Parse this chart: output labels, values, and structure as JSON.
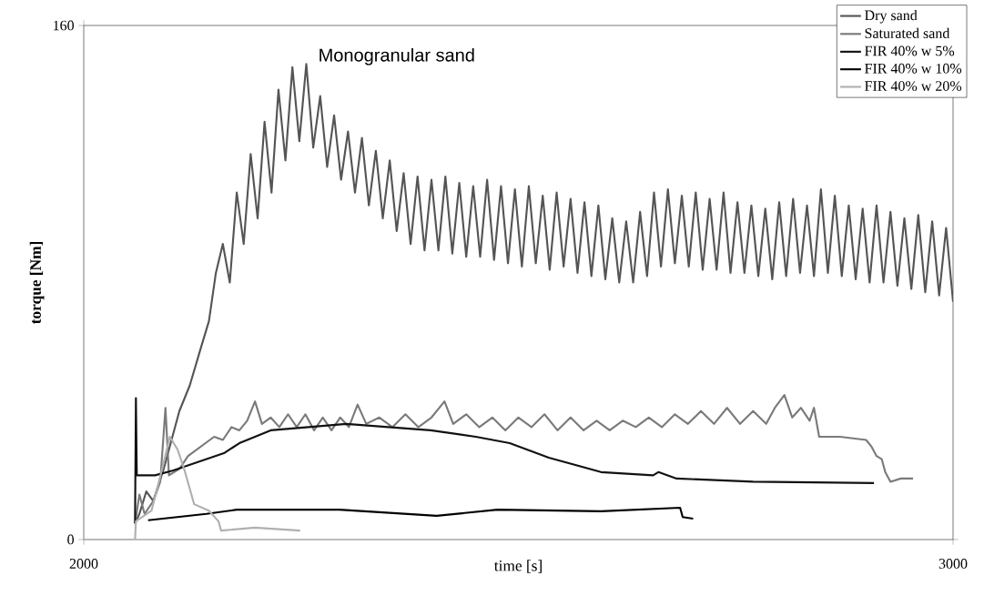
{
  "chart_data": {
    "type": "line",
    "title": "Monogranular sand",
    "xlabel": "time [s]",
    "ylabel": "torque [Nm]",
    "xlim": [
      2000,
      3000
    ],
    "ylim": [
      0,
      160
    ],
    "xticks": [
      2000,
      3000
    ],
    "yticks": [
      0,
      160
    ],
    "legend": "top right",
    "series": [
      {
        "name": "Dry sand",
        "color": "#555555",
        "x": [
          2059,
          2064,
          2072,
          2080,
          2092,
          2100,
          2110,
          2122,
          2134,
          2144,
          2152,
          2160,
          2168,
          2176,
          2184,
          2192,
          2200,
          2208,
          2216,
          2224,
          2232,
          2240,
          2248,
          2256,
          2264,
          2272,
          2280,
          2288,
          2296,
          2304,
          2312,
          2320,
          2328,
          2336,
          2344,
          2352,
          2360,
          2368,
          2376,
          2384,
          2392,
          2400,
          2408,
          2416,
          2424,
          2432,
          2440,
          2448,
          2456,
          2464,
          2472,
          2480,
          2488,
          2496,
          2504,
          2512,
          2520,
          2528,
          2536,
          2544,
          2552,
          2560,
          2568,
          2576,
          2584,
          2592,
          2600,
          2608,
          2616,
          2624,
          2632,
          2640,
          2648,
          2656,
          2664,
          2672,
          2680,
          2688,
          2696,
          2704,
          2712,
          2720,
          2728,
          2736,
          2744,
          2752,
          2760,
          2768,
          2776,
          2784,
          2792,
          2800,
          2808,
          2816,
          2824,
          2832,
          2840,
          2848,
          2856,
          2864,
          2872,
          2880,
          2888,
          2896,
          2904,
          2912,
          2920,
          2928,
          2936,
          2944,
          2952,
          2960,
          2968,
          2976,
          2984,
          2992,
          3000
        ],
        "values": [
          5,
          8,
          15,
          12,
          22,
          30,
          40,
          48,
          59,
          68,
          83,
          92,
          80,
          108,
          92,
          120,
          100,
          130,
          108,
          140,
          118,
          147,
          124,
          148,
          122,
          138,
          116,
          132,
          112,
          127,
          108,
          125,
          104,
          121,
          100,
          118,
          96,
          114,
          92,
          113,
          90,
          112,
          90,
          113,
          89,
          111,
          88,
          110,
          88,
          112,
          87,
          110,
          86,
          109,
          85,
          110,
          86,
          107,
          84,
          108,
          85,
          106,
          83,
          105,
          82,
          104,
          81,
          100,
          80,
          99,
          80,
          102,
          82,
          108,
          85,
          109,
          86,
          107,
          85,
          108,
          84,
          106,
          84,
          108,
          83,
          105,
          83,
          104,
          82,
          103,
          81,
          105,
          82,
          106,
          83,
          104,
          82,
          109,
          83,
          107,
          82,
          104,
          81,
          103,
          80,
          104,
          80,
          102,
          79,
          100,
          78,
          101,
          77,
          99,
          76,
          97,
          74
        ]
      },
      {
        "name": "Saturated sand",
        "color": "#7a7a7a",
        "x": [
          2059,
          2064,
          2070,
          2080,
          2088,
          2094,
          2098,
          2110,
          2120,
          2130,
          2140,
          2150,
          2160,
          2170,
          2179,
          2188,
          2197,
          2205,
          2215,
          2225,
          2235,
          2245,
          2255,
          2265,
          2275,
          2285,
          2295,
          2305,
          2315,
          2325,
          2340,
          2355,
          2370,
          2385,
          2400,
          2415,
          2425,
          2440,
          2455,
          2470,
          2485,
          2500,
          2515,
          2530,
          2545,
          2560,
          2575,
          2590,
          2605,
          2620,
          2635,
          2650,
          2665,
          2680,
          2695,
          2710,
          2725,
          2740,
          2755,
          2770,
          2785,
          2795,
          2806,
          2815,
          2825,
          2835,
          2840,
          2846,
          2870,
          2900,
          2906,
          2912,
          2918,
          2922,
          2928,
          2940,
          2954
        ],
        "values": [
          5,
          14,
          8,
          12,
          18,
          41,
          20,
          22,
          26,
          28,
          30,
          32,
          31,
          35,
          34,
          37,
          43,
          36,
          38,
          35,
          39,
          35,
          39,
          34,
          38,
          34,
          38,
          35,
          42,
          36,
          38,
          35,
          39,
          35,
          38,
          43,
          36,
          39,
          35,
          38,
          34,
          38,
          35,
          39,
          34,
          38,
          34,
          37,
          34,
          37,
          35,
          38,
          35,
          39,
          36,
          40,
          36,
          41,
          36,
          40,
          36,
          41,
          45,
          38,
          41,
          37,
          41,
          32,
          32,
          31,
          29,
          26,
          25,
          21,
          18,
          19,
          19
        ]
      },
      {
        "name": "FIR 40% w 5%",
        "color": "#111111",
        "x": [
          2059,
          2060,
          2061,
          2063,
          2082,
          2103,
          2162,
          2179,
          2215,
          2302,
          2399,
          2451,
          2490,
          2535,
          2595,
          2655,
          2661,
          2682,
          2770,
          2909
        ],
        "values": [
          5,
          44,
          20,
          20,
          20,
          21.5,
          27,
          30,
          34,
          36,
          34,
          32,
          30,
          25.5,
          21,
          20,
          21,
          19,
          18,
          17.6
        ]
      },
      {
        "name": "FIR 40% w 10%",
        "color": "#000000",
        "x": [
          2074,
          2141,
          2176,
          2294,
          2406,
          2476,
          2595,
          2686,
          2689,
          2701
        ],
        "values": [
          6,
          8,
          9.3,
          9.3,
          7.4,
          9.3,
          8.8,
          9.9,
          7,
          6.5
        ]
      },
      {
        "name": "FIR 40% w 20%",
        "color": "#b0b0b0",
        "x": [
          2000,
          2059,
          2060,
          2078,
          2092,
          2099,
          2108,
          2116,
          2127,
          2144,
          2155,
          2158,
          2197,
          2249
        ],
        "values": [
          0,
          0,
          5.7,
          9,
          24,
          32,
          28,
          21.5,
          11,
          9,
          5.7,
          2.8,
          3.7,
          2.8
        ]
      }
    ]
  }
}
